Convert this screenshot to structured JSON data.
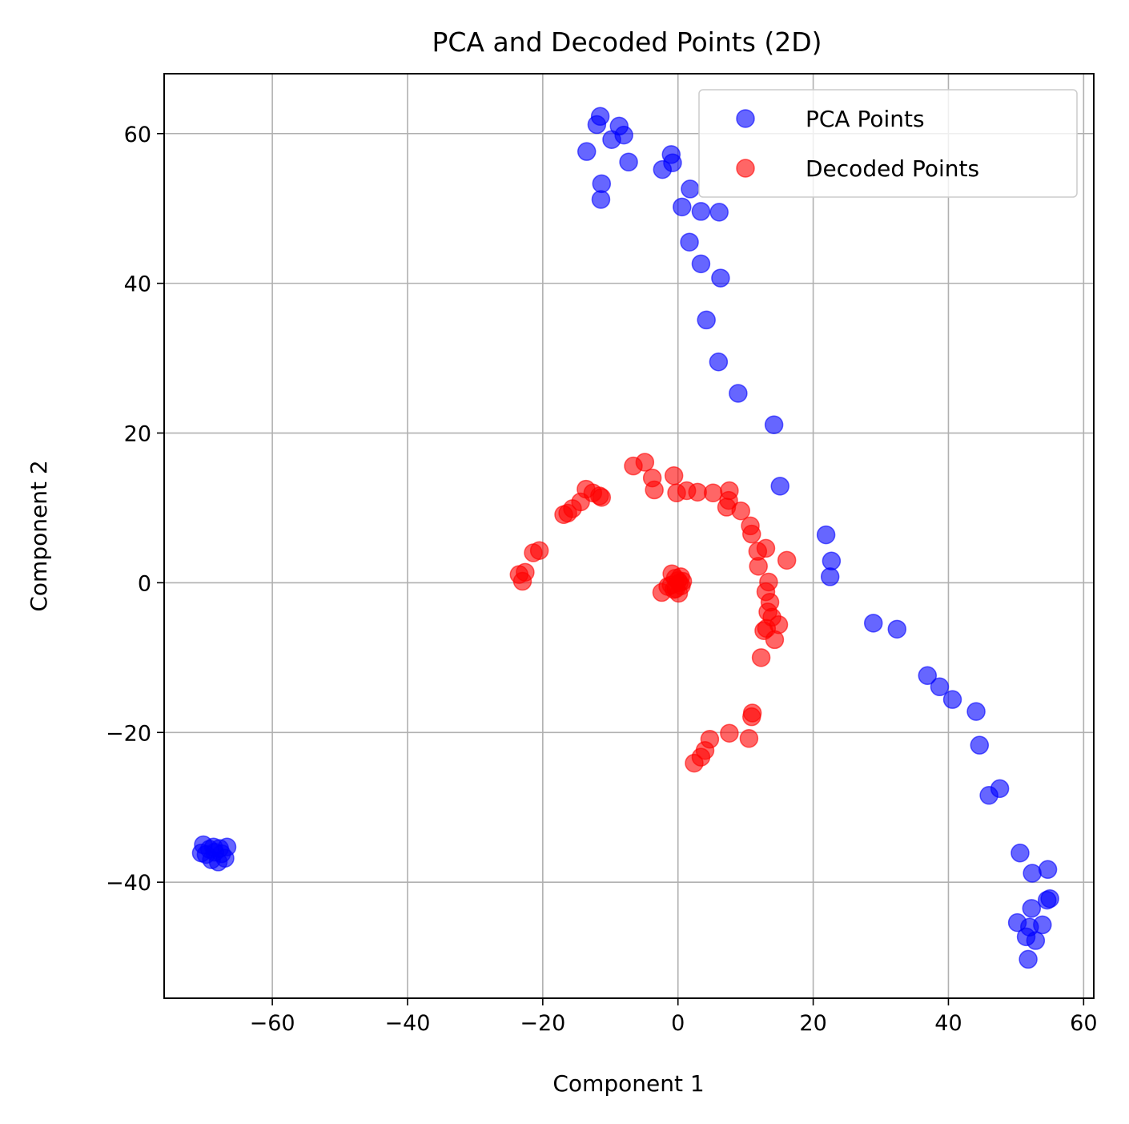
{
  "chart_data": {
    "type": "scatter",
    "title": "PCA and Decoded Points (2D)",
    "xlabel": "Component 1",
    "ylabel": "Component 2",
    "xlim": [
      -76,
      61.5
    ],
    "ylim": [
      -55.5,
      68
    ],
    "xticks": [
      -60,
      -40,
      -20,
      0,
      20,
      40,
      60
    ],
    "yticks": [
      -40,
      -20,
      0,
      20,
      40,
      60
    ],
    "xtick_labels": [
      "−60",
      "−40",
      "−20",
      "0",
      "20",
      "40",
      "60"
    ],
    "ytick_labels": [
      "−40",
      "−20",
      "0",
      "20",
      "40",
      "60"
    ],
    "grid": true,
    "legend_position": "upper right",
    "series": [
      {
        "name": "PCA Points",
        "color": "#0000ff",
        "alpha": 0.6,
        "points": [
          [
            -11.5,
            62.3
          ],
          [
            -12.0,
            61.2
          ],
          [
            -8.7,
            61.0
          ],
          [
            -8.0,
            59.8
          ],
          [
            -9.8,
            59.2
          ],
          [
            -13.5,
            57.6
          ],
          [
            -7.3,
            56.2
          ],
          [
            -1.0,
            57.2
          ],
          [
            -0.8,
            56.1
          ],
          [
            -2.3,
            55.2
          ],
          [
            -11.3,
            53.3
          ],
          [
            -11.4,
            51.2
          ],
          [
            1.8,
            52.6
          ],
          [
            0.6,
            50.2
          ],
          [
            3.4,
            49.6
          ],
          [
            6.1,
            49.5
          ],
          [
            1.7,
            45.5
          ],
          [
            3.4,
            42.6
          ],
          [
            6.3,
            40.7
          ],
          [
            4.2,
            35.1
          ],
          [
            6.0,
            29.5
          ],
          [
            8.9,
            25.3
          ],
          [
            14.2,
            21.1
          ],
          [
            15.1,
            12.9
          ],
          [
            21.9,
            6.4
          ],
          [
            22.7,
            2.9
          ],
          [
            22.5,
            0.8
          ],
          [
            28.9,
            -5.4
          ],
          [
            32.4,
            -6.2
          ],
          [
            36.9,
            -12.4
          ],
          [
            38.7,
            -13.9
          ],
          [
            40.6,
            -15.6
          ],
          [
            44.1,
            -17.2
          ],
          [
            44.6,
            -21.7
          ],
          [
            46.0,
            -28.4
          ],
          [
            47.6,
            -27.5
          ],
          [
            50.6,
            -36.1
          ],
          [
            52.4,
            -38.8
          ],
          [
            54.7,
            -38.3
          ],
          [
            50.2,
            -45.4
          ],
          [
            52.3,
            -43.5
          ],
          [
            51.5,
            -47.3
          ],
          [
            52.9,
            -47.8
          ],
          [
            53.9,
            -45.7
          ],
          [
            54.6,
            -42.4
          ],
          [
            55.0,
            -42.2
          ],
          [
            51.8,
            -50.3
          ],
          [
            52.0,
            -46.0
          ],
          [
            -70.2,
            -35.0
          ],
          [
            -68.7,
            -35.3
          ],
          [
            -66.7,
            -35.3
          ],
          [
            -69.8,
            -36.3
          ],
          [
            -67.5,
            -36.2
          ],
          [
            -69.0,
            -37.0
          ],
          [
            -67.0,
            -36.8
          ],
          [
            -68.5,
            -36.0
          ],
          [
            -70.5,
            -36.1
          ],
          [
            -68.0,
            -37.3
          ],
          [
            -69.3,
            -35.6
          ],
          [
            -67.8,
            -35.5
          ]
        ]
      },
      {
        "name": "Decoded Points",
        "color": "#ff0000",
        "alpha": 0.6,
        "points": [
          [
            -23.5,
            1.1
          ],
          [
            -22.6,
            1.4
          ],
          [
            -23.0,
            0.2
          ],
          [
            -21.4,
            4.0
          ],
          [
            -20.5,
            4.3
          ],
          [
            -16.9,
            9.1
          ],
          [
            -16.3,
            9.3
          ],
          [
            -15.6,
            9.9
          ],
          [
            -14.4,
            10.8
          ],
          [
            -13.6,
            12.5
          ],
          [
            -12.6,
            12.0
          ],
          [
            -11.6,
            11.6
          ],
          [
            -11.3,
            11.4
          ],
          [
            -6.6,
            15.6
          ],
          [
            -4.9,
            16.1
          ],
          [
            -3.8,
            14.0
          ],
          [
            -3.5,
            12.4
          ],
          [
            -0.6,
            14.3
          ],
          [
            -0.2,
            12.0
          ],
          [
            1.3,
            12.3
          ],
          [
            2.9,
            12.1
          ],
          [
            5.2,
            12.0
          ],
          [
            7.6,
            12.3
          ],
          [
            7.5,
            11.0
          ],
          [
            7.2,
            10.1
          ],
          [
            9.3,
            9.6
          ],
          [
            10.7,
            7.6
          ],
          [
            10.9,
            6.5
          ],
          [
            11.8,
            4.2
          ],
          [
            13.0,
            4.6
          ],
          [
            11.9,
            2.2
          ],
          [
            16.1,
            3.0
          ],
          [
            13.0,
            -1.2
          ],
          [
            13.4,
            0.1
          ],
          [
            13.6,
            -2.6
          ],
          [
            13.3,
            -3.9
          ],
          [
            13.9,
            -4.6
          ],
          [
            14.9,
            -5.6
          ],
          [
            12.7,
            -6.4
          ],
          [
            13.1,
            -6.1
          ],
          [
            14.3,
            -7.6
          ],
          [
            12.3,
            -10.0
          ],
          [
            -0.9,
            1.2
          ],
          [
            -0.4,
            0.6
          ],
          [
            0.2,
            0.0
          ],
          [
            0.5,
            -0.4
          ],
          [
            -0.3,
            -0.8
          ],
          [
            0.1,
            -1.4
          ],
          [
            -2.4,
            -1.3
          ],
          [
            -1.0,
            -0.3
          ],
          [
            0.7,
            0.2
          ],
          [
            -0.6,
            -0.9
          ],
          [
            0.4,
            0.8
          ],
          [
            -1.5,
            -0.5
          ],
          [
            0.0,
            0.3
          ],
          [
            11.0,
            -17.4
          ],
          [
            10.9,
            -17.9
          ],
          [
            10.5,
            -20.8
          ],
          [
            7.6,
            -20.1
          ],
          [
            4.7,
            -20.9
          ],
          [
            4.0,
            -22.4
          ],
          [
            3.4,
            -23.3
          ],
          [
            2.4,
            -24.1
          ]
        ]
      }
    ]
  }
}
